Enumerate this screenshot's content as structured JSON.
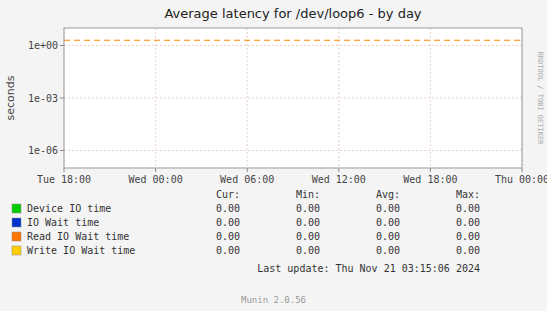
{
  "chart_data": {
    "type": "line",
    "title": "Average latency for /dev/loop6 - by day",
    "y_label": "seconds",
    "log": "y",
    "grid": true,
    "xlim": [
      0,
      5
    ],
    "xticks": [
      {
        "value": 0,
        "label": "Tue 18:00"
      },
      {
        "value": 1,
        "label": "Wed 00:00"
      },
      {
        "value": 2,
        "label": "Wed 06:00"
      },
      {
        "value": 3,
        "label": "Wed 12:00"
      },
      {
        "value": 4,
        "label": "Wed 18:00"
      },
      {
        "value": 5,
        "label": "Thu 00:00"
      }
    ],
    "ylim": [
      1e-07,
      10
    ],
    "yticks": [
      {
        "value": 1e-06,
        "label": "1e-06"
      },
      {
        "value": 0.001,
        "label": "1e-03"
      },
      {
        "value": 1,
        "label": "1e+00"
      }
    ],
    "series": [
      {
        "name": "Device IO time",
        "color": "#00cc00"
      },
      {
        "name": "IO Wait time",
        "color": "#0033cc"
      },
      {
        "name": "Read IO Wait time",
        "color": "#ff7700"
      },
      {
        "name": "Write IO Wait time",
        "color": "#ffcc00"
      }
    ],
    "hlines": [
      {
        "value": 2.0,
        "color": "#ff8800",
        "line_style": "dashed"
      }
    ],
    "table": {
      "headers": [
        "Cur:",
        "Min:",
        "Avg:",
        "Max:"
      ],
      "rows": [
        [
          "0.00",
          "0.00",
          "0.00",
          "0.00"
        ],
        [
          "0.00",
          "0.00",
          "0.00",
          "0.00"
        ],
        [
          "0.00",
          "0.00",
          "0.00",
          "0.00"
        ],
        [
          "0.00",
          "0.00",
          "0.00",
          "0.00"
        ]
      ]
    },
    "annotations": [
      "RRDTOOL / TOBI OETIKER",
      "Last update: Thu Nov 21 03:15:06 2024",
      "Munin 2.0.56"
    ]
  }
}
